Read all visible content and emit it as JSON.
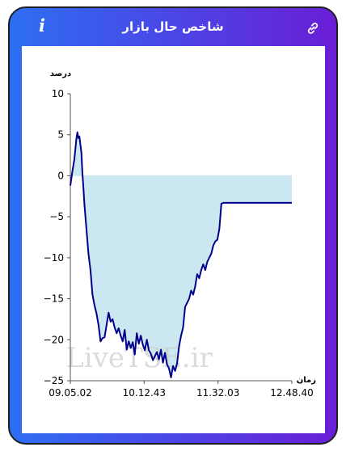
{
  "header": {
    "title": "شاخص حال بازار",
    "info_icon": "info-icon",
    "link_icon": "link-icon"
  },
  "watermark": "LiveTSE.ir",
  "colors": {
    "line": "#00008b",
    "fill": "#cbe8f2",
    "gradient_start": "#2d6ff2",
    "gradient_end": "#6a1ed6"
  },
  "chart_data": {
    "type": "area",
    "ylabel": "درصد",
    "xlabel": "زمان",
    "ylim": [
      -25,
      10
    ],
    "yticks": [
      10,
      5,
      0,
      -5,
      -10,
      -15,
      -20,
      -25
    ],
    "xticks": [
      "09.05.02",
      "10.12.43",
      "11.32.03",
      "12.48.40"
    ],
    "xlim": [
      0,
      220
    ],
    "grid": false,
    "baseline": 0,
    "series": [
      {
        "x": [
          0,
          2,
          4,
          6,
          7,
          8,
          9,
          10,
          11,
          12,
          13,
          14,
          15,
          16,
          18,
          20,
          22,
          24,
          26,
          28,
          30,
          32,
          34,
          36,
          38,
          40,
          42,
          44,
          46,
          48,
          50,
          52,
          54,
          56,
          58,
          60,
          62,
          64,
          66,
          68,
          70,
          72,
          74,
          76,
          78,
          80,
          82,
          84,
          86,
          88,
          90,
          92,
          94,
          96,
          98,
          100,
          102,
          104,
          106,
          108,
          110,
          112,
          114,
          116,
          118,
          120,
          122,
          124,
          126,
          128,
          130,
          132,
          134,
          136,
          138,
          140,
          142,
          144,
          146,
          148,
          150,
          152,
          154,
          156,
          158,
          160,
          162,
          164,
          166,
          168,
          170,
          172,
          174,
          176,
          178,
          180,
          182,
          184,
          186,
          188,
          190,
          192,
          194,
          196,
          198,
          200,
          202,
          204,
          206,
          208,
          210,
          212,
          214,
          216,
          218,
          220
        ],
        "values": [
          -1.2,
          0.5,
          2.0,
          4.5,
          5.3,
          4.6,
          4.8,
          3.8,
          2.8,
          0.3,
          -1.5,
          -3.5,
          -5.0,
          -6.5,
          -9.5,
          -11.5,
          -14.5,
          -15.8,
          -16.8,
          -18.2,
          -20.2,
          -19.8,
          -19.7,
          -18.2,
          -16.7,
          -17.8,
          -17.5,
          -18.5,
          -19.2,
          -18.6,
          -19.5,
          -20.2,
          -18.8,
          -21.2,
          -20.2,
          -21.0,
          -20.3,
          -21.8,
          -19.2,
          -20.5,
          -19.5,
          -20.6,
          -21.3,
          -20.0,
          -21.3,
          -21.7,
          -22.5,
          -22.0,
          -21.5,
          -22.4,
          -21.2,
          -22.8,
          -21.6,
          -23.0,
          -23.5,
          -24.6,
          -23.2,
          -23.8,
          -22.9,
          -20.8,
          -19.5,
          -18.5,
          -16.0,
          -15.5,
          -15.0,
          -14.0,
          -14.5,
          -13.5,
          -12.0,
          -12.5,
          -11.5,
          -10.8,
          -11.5,
          -10.5,
          -10.0,
          -9.5,
          -8.5,
          -8.0,
          -7.8,
          -6.5,
          -3.4,
          -3.3,
          -3.3,
          -3.3,
          -3.3,
          -3.3,
          -3.3,
          -3.3,
          -3.3,
          -3.3,
          -3.3,
          -3.3,
          -3.3,
          -3.3,
          -3.3,
          -3.3,
          -3.3,
          -3.3,
          -3.3,
          -3.3,
          -3.3,
          -3.3,
          -3.3,
          -3.3,
          -3.3,
          -3.3,
          -3.3,
          -3.3,
          -3.3,
          -3.3,
          -3.3,
          -3.3,
          -3.3,
          -3.3,
          -3.3,
          -3.3
        ]
      }
    ]
  }
}
